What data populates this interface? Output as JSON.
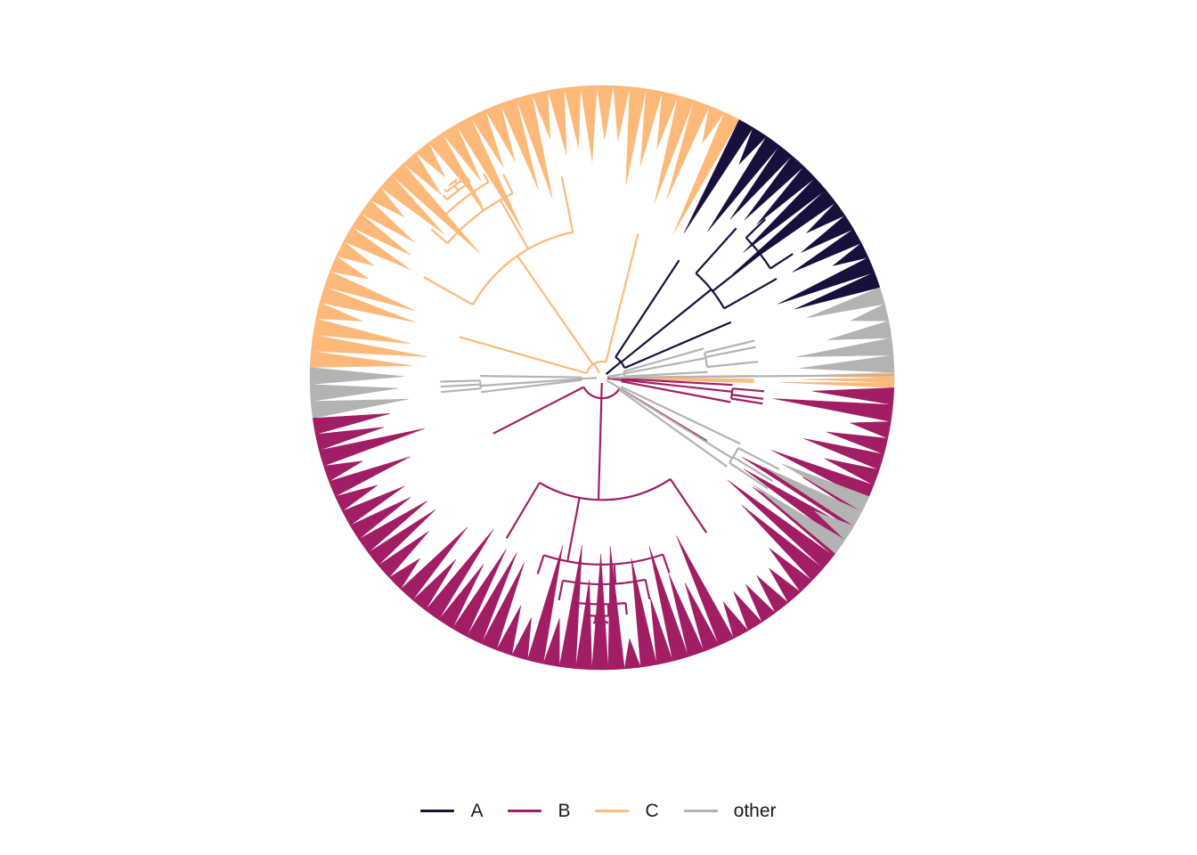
{
  "figure": {
    "type": "circular-phylogenetic-tree",
    "background": "#ffffff"
  },
  "groups": [
    {
      "key": "A",
      "label": "A",
      "color": "#180F3D"
    },
    {
      "key": "B",
      "label": "B",
      "color": "#A21E64"
    },
    {
      "key": "C",
      "label": "C",
      "color": "#FDB97A"
    },
    {
      "key": "other",
      "label": "other",
      "color": "#B3B3B3"
    }
  ],
  "legend": {
    "position": "bottom"
  },
  "clades": [
    {
      "group": "C",
      "angle_start": 62,
      "angle_end": 178
    },
    {
      "group": "A",
      "angle_start": 18,
      "angle_end": 62
    },
    {
      "group": "other",
      "angle_start": 1,
      "angle_end": 18
    },
    {
      "group": "C",
      "angle_start": -2,
      "angle_end": 1
    },
    {
      "group": "other",
      "angle_start": 178,
      "angle_end": 188
    },
    {
      "group": "B",
      "angle_start": 188,
      "angle_end": 348
    },
    {
      "group": "other",
      "angle_start": 323,
      "angle_end": 336
    },
    {
      "group": "B",
      "angle_start": 348,
      "angle_end": 358
    }
  ]
}
